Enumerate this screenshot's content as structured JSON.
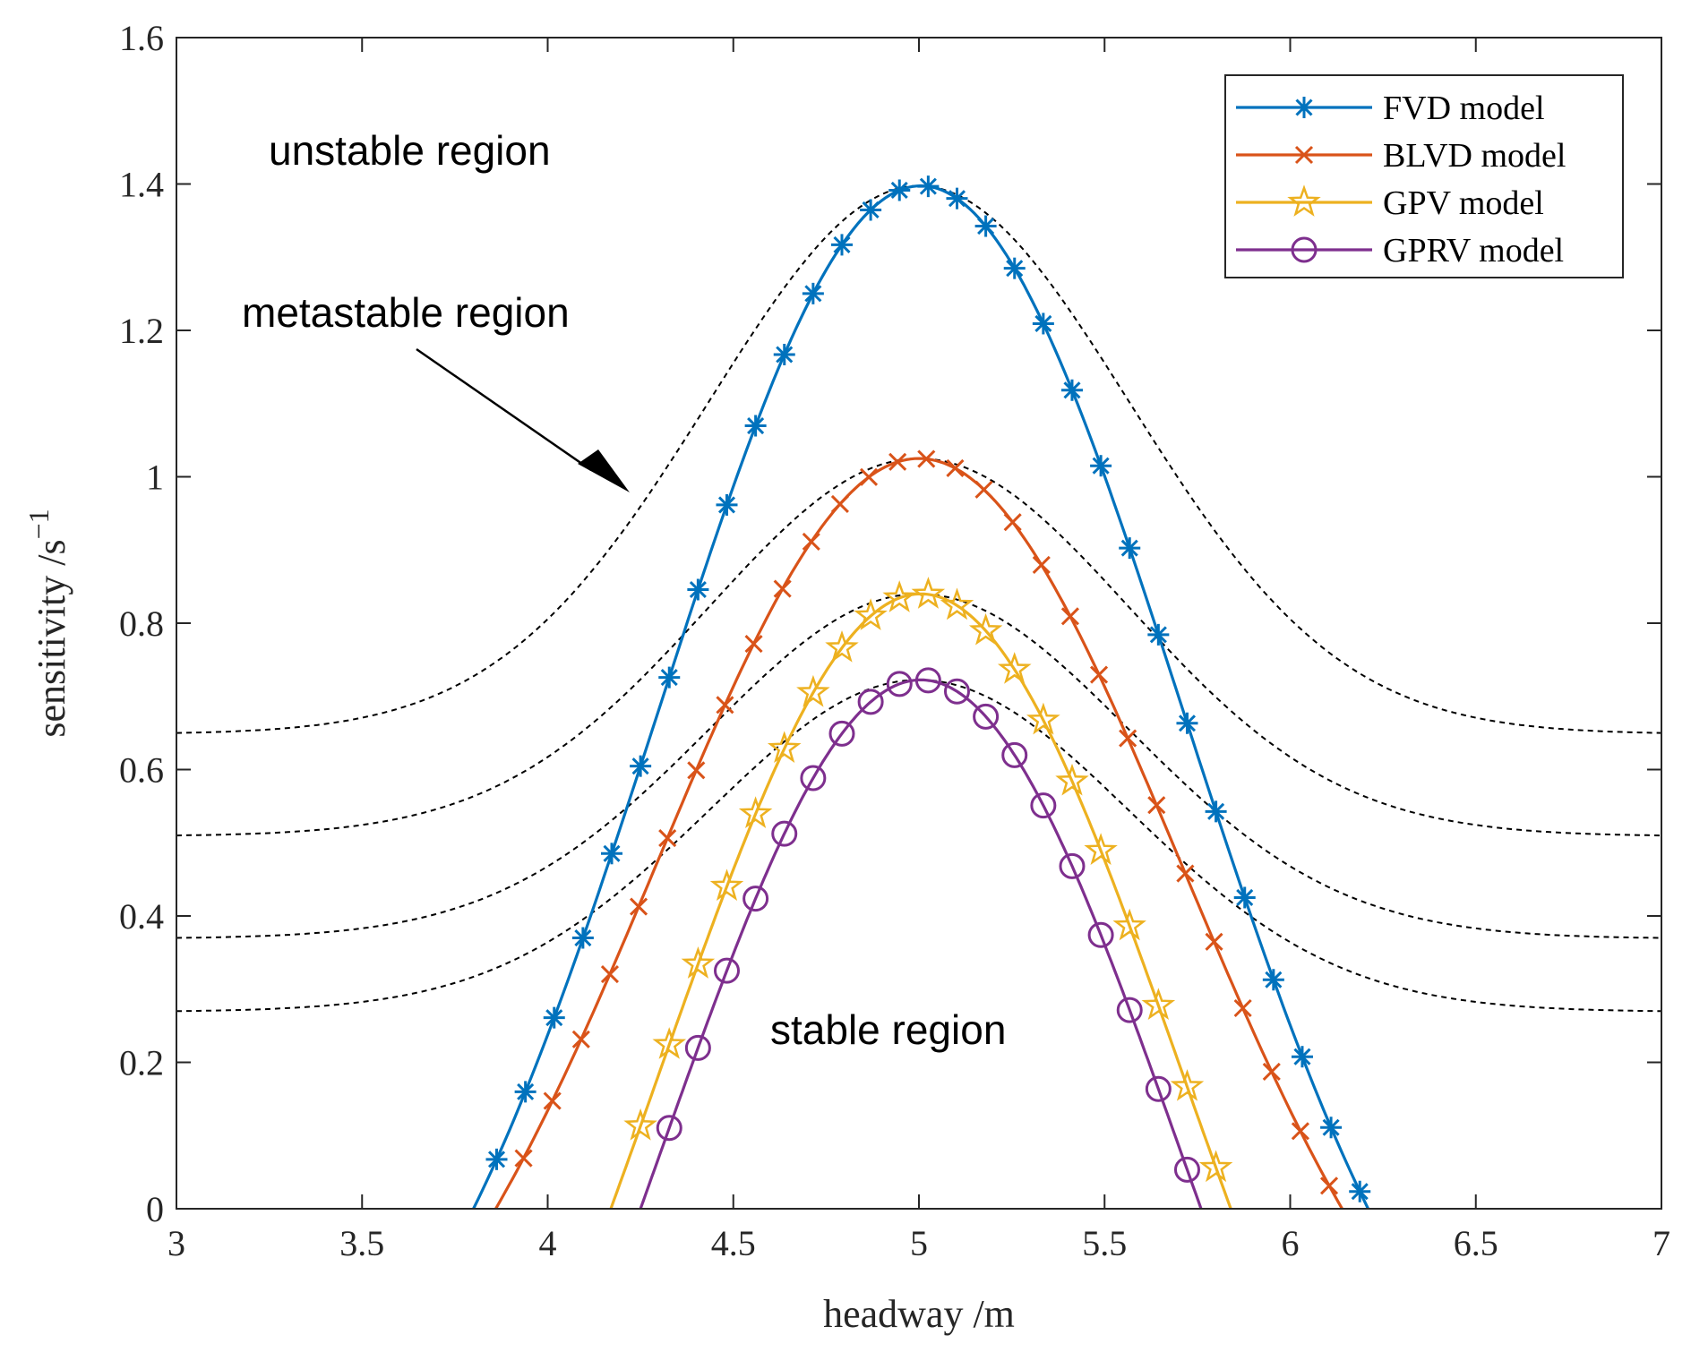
{
  "chart_data": {
    "type": "line",
    "title": "",
    "xlabel": "headway /m",
    "ylabel": "sensitivity /s",
    "ylabel_superscript": "−1",
    "xlim": [
      3,
      7
    ],
    "ylim": [
      0,
      1.6
    ],
    "xticks": [
      3,
      3.5,
      4,
      4.5,
      5,
      5.5,
      6,
      6.5,
      7
    ],
    "xtick_labels": [
      "3",
      "3.5",
      "4",
      "4.5",
      "5",
      "5.5",
      "6",
      "6.5",
      "7"
    ],
    "yticks": [
      0,
      0.2,
      0.4,
      0.6,
      0.8,
      1.0,
      1.2,
      1.4,
      1.6
    ],
    "ytick_labels": [
      "0",
      "0.2",
      "0.4",
      "0.6",
      "0.8",
      "1",
      "1.2",
      "1.4",
      "1.6"
    ],
    "grid": false,
    "legend_position": "top-right",
    "series": [
      {
        "name": "FVD model",
        "color": "#0072BD",
        "marker": "asterisk",
        "peak": 1.3975,
        "x_start": 3.8,
        "x_end": 6.21
      },
      {
        "name": "BLVD model",
        "color": "#D95319",
        "marker": "x",
        "peak": 1.025,
        "x_start": 3.86,
        "x_end": 6.14
      },
      {
        "name": "GPV model",
        "color": "#EDB120",
        "marker": "star",
        "peak": 0.84,
        "x_start": 4.17,
        "x_end": 5.84
      },
      {
        "name": "GPRV model",
        "color": "#7E2F8E",
        "marker": "circle",
        "peak": 0.7225,
        "x_start": 4.25,
        "x_end": 5.76
      }
    ],
    "reference_curves": [
      {
        "peak": 1.3975,
        "value_at_3": 0.65
      },
      {
        "peak": 1.025,
        "value_at_3": 0.51
      },
      {
        "peak": 0.84,
        "value_at_3": 0.37
      },
      {
        "peak": 0.7225,
        "value_at_3": 0.27
      }
    ],
    "annotations": [
      {
        "text": "unstable region"
      },
      {
        "text": "metastable region"
      },
      {
        "text": "stable region"
      }
    ]
  }
}
